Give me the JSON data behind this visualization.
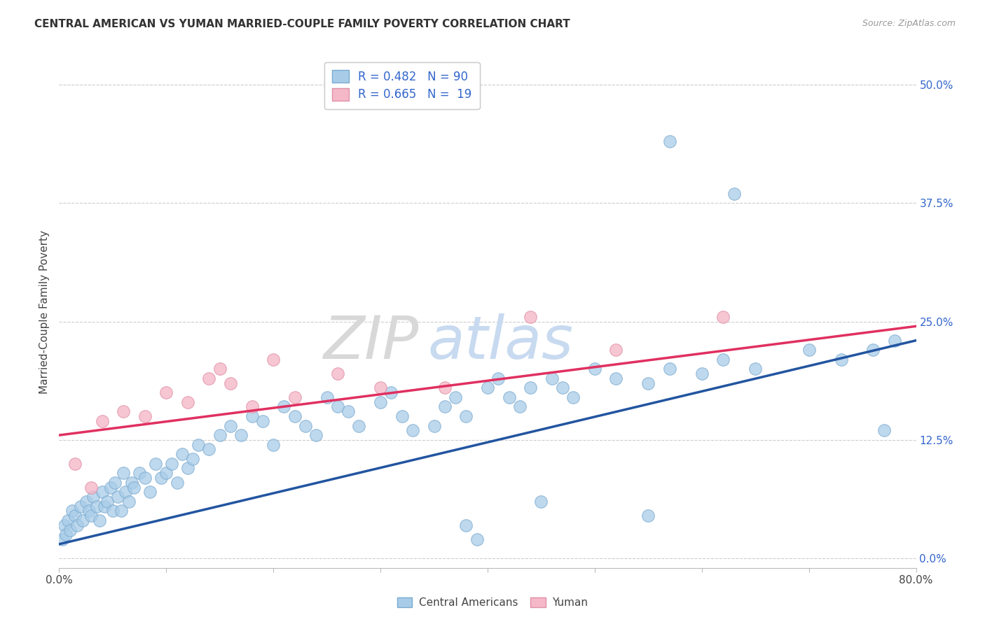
{
  "title": "CENTRAL AMERICAN VS YUMAN MARRIED-COUPLE FAMILY POVERTY CORRELATION CHART",
  "source": "Source: ZipAtlas.com",
  "ylabel": "Married-Couple Family Poverty",
  "ytick_labels": [
    "0.0%",
    "12.5%",
    "25.0%",
    "37.5%",
    "50.0%"
  ],
  "ytick_values": [
    0.0,
    12.5,
    25.0,
    37.5,
    50.0
  ],
  "xlim": [
    0.0,
    80.0
  ],
  "ylim": [
    -1.0,
    53.0
  ],
  "blue_scatter_color": "#a8cce8",
  "blue_scatter_edge": "#7aaad0",
  "pink_scatter_color": "#f5b8c8",
  "pink_scatter_edge": "#e090a8",
  "blue_line_color": "#2255a0",
  "pink_line_color": "#e03060",
  "blue_line_start_y": 1.5,
  "blue_line_end_y": 23.0,
  "pink_line_start_y": 13.0,
  "pink_line_end_y": 24.5,
  "watermark_color": "#dde8f5",
  "grid_color": "#cccccc",
  "ca_x": [
    0.3,
    0.5,
    0.6,
    0.8,
    1.0,
    1.2,
    1.5,
    1.7,
    2.0,
    2.2,
    2.5,
    2.8,
    3.0,
    3.2,
    3.5,
    3.8,
    4.0,
    4.2,
    4.5,
    4.8,
    5.0,
    5.2,
    5.5,
    5.8,
    6.0,
    6.2,
    6.5,
    6.8,
    7.0,
    7.5,
    8.0,
    8.5,
    9.0,
    9.5,
    10.0,
    10.5,
    11.0,
    11.5,
    12.0,
    12.5,
    13.0,
    14.0,
    15.0,
    16.0,
    17.0,
    18.0,
    19.0,
    20.0,
    21.0,
    22.0,
    23.0,
    24.0,
    25.0,
    26.0,
    27.0,
    28.0,
    30.0,
    31.0,
    32.0,
    33.0,
    35.0,
    36.0,
    37.0,
    38.0,
    40.0,
    41.0,
    42.0,
    43.0,
    44.0,
    46.0,
    47.0,
    48.0,
    50.0,
    52.0,
    55.0,
    57.0,
    60.0,
    62.0,
    65.0,
    70.0,
    73.0,
    76.0,
    78.0,
    38.0,
    39.0,
    45.0,
    55.0,
    57.0,
    63.0,
    77.0
  ],
  "ca_y": [
    2.0,
    3.5,
    2.5,
    4.0,
    3.0,
    5.0,
    4.5,
    3.5,
    5.5,
    4.0,
    6.0,
    5.0,
    4.5,
    6.5,
    5.5,
    4.0,
    7.0,
    5.5,
    6.0,
    7.5,
    5.0,
    8.0,
    6.5,
    5.0,
    9.0,
    7.0,
    6.0,
    8.0,
    7.5,
    9.0,
    8.5,
    7.0,
    10.0,
    8.5,
    9.0,
    10.0,
    8.0,
    11.0,
    9.5,
    10.5,
    12.0,
    11.5,
    13.0,
    14.0,
    13.0,
    15.0,
    14.5,
    12.0,
    16.0,
    15.0,
    14.0,
    13.0,
    17.0,
    16.0,
    15.5,
    14.0,
    16.5,
    17.5,
    15.0,
    13.5,
    14.0,
    16.0,
    17.0,
    15.0,
    18.0,
    19.0,
    17.0,
    16.0,
    18.0,
    19.0,
    18.0,
    17.0,
    20.0,
    19.0,
    18.5,
    20.0,
    19.5,
    21.0,
    20.0,
    22.0,
    21.0,
    22.0,
    23.0,
    3.5,
    2.0,
    6.0,
    4.5,
    44.0,
    38.5,
    13.5
  ],
  "yu_x": [
    1.5,
    3.0,
    4.0,
    6.0,
    8.0,
    10.0,
    12.0,
    14.0,
    15.0,
    16.0,
    18.0,
    20.0,
    22.0,
    26.0,
    30.0,
    36.0,
    44.0,
    52.0,
    62.0
  ],
  "yu_y": [
    10.0,
    7.5,
    14.5,
    15.5,
    15.0,
    17.5,
    16.5,
    19.0,
    20.0,
    18.5,
    16.0,
    21.0,
    17.0,
    19.5,
    18.0,
    18.0,
    25.5,
    22.0,
    25.5
  ]
}
